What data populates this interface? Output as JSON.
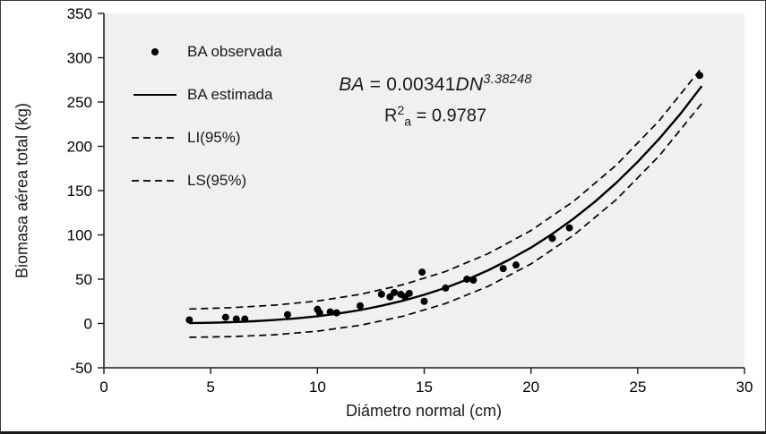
{
  "chart_data": {
    "type": "scatter",
    "title": "",
    "xlabel": "Diámetro normal (cm)",
    "ylabel": "Biomasa aérea total (kg)",
    "xlim": [
      0,
      30
    ],
    "ylim": [
      -50,
      350
    ],
    "xticks": [
      0,
      5,
      10,
      15,
      20,
      25,
      30
    ],
    "yticks": [
      -50,
      0,
      50,
      100,
      150,
      200,
      250,
      300,
      350
    ],
    "grid": false,
    "legend_position": "inside-top-left",
    "colors": {
      "plot_bg": "#f0f0f0",
      "axis": "#1a1a1a",
      "text": "#000000",
      "series": "#000000"
    },
    "annotation": {
      "equation_lhs": "BA",
      "equation_eq": " = 0.00341",
      "equation_var": "DN",
      "equation_exp": "3.38248",
      "r2_base": "R",
      "r2_sup": "2",
      "r2_sub": "a",
      "r2_rest": " = 0.9787"
    },
    "model": {
      "coefficient": 0.00341,
      "exponent": 3.38248,
      "r2_adjusted": 0.9787
    },
    "legend": [
      {
        "label": "BA observada",
        "marker": "dot"
      },
      {
        "label": "BA estimada",
        "marker": "solid-line"
      },
      {
        "label": "LI(95%)",
        "marker": "dashed-line"
      },
      {
        "label": "LS(95%)",
        "marker": "dashed-line"
      }
    ],
    "series": [
      {
        "name": "BA observada",
        "type": "scatter",
        "color": "#000000",
        "points": [
          [
            4,
            4
          ],
          [
            5.7,
            7
          ],
          [
            6.2,
            5
          ],
          [
            6.6,
            5
          ],
          [
            8.6,
            10
          ],
          [
            10,
            16
          ],
          [
            10.1,
            12
          ],
          [
            10.6,
            13
          ],
          [
            10.9,
            12
          ],
          [
            12,
            20
          ],
          [
            13,
            33
          ],
          [
            13.4,
            30
          ],
          [
            13.6,
            35
          ],
          [
            13.9,
            33
          ],
          [
            14.1,
            30
          ],
          [
            14.3,
            34
          ],
          [
            14.9,
            58
          ],
          [
            15,
            25
          ],
          [
            16,
            40
          ],
          [
            17,
            50
          ],
          [
            17.3,
            49
          ],
          [
            18.7,
            62
          ],
          [
            19.3,
            66
          ],
          [
            21,
            96
          ],
          [
            21.8,
            108
          ],
          [
            27.9,
            280
          ]
        ]
      },
      {
        "name": "BA estimada",
        "type": "line",
        "color": "#000000",
        "width": 2.4,
        "points": [
          [
            4,
            0.4
          ],
          [
            5,
            0.8
          ],
          [
            6,
            1.5
          ],
          [
            7,
            2.5
          ],
          [
            8,
            3.9
          ],
          [
            9,
            5.8
          ],
          [
            10,
            8.2
          ],
          [
            11,
            11.3
          ],
          [
            12,
            15.2
          ],
          [
            13,
            20.0
          ],
          [
            14,
            25.7
          ],
          [
            15,
            32.4
          ],
          [
            16,
            40.3
          ],
          [
            17,
            49.5
          ],
          [
            18,
            60.1
          ],
          [
            19,
            72.2
          ],
          [
            20,
            85.7
          ],
          [
            21,
            101.1
          ],
          [
            22,
            118.4
          ],
          [
            23,
            137.6
          ],
          [
            24,
            158.9
          ],
          [
            25,
            182.5
          ],
          [
            26,
            208.4
          ],
          [
            27,
            236.7
          ],
          [
            28,
            268.0
          ]
        ]
      },
      {
        "name": "LI(95%)",
        "type": "line",
        "color": "#000000",
        "width": 1.7,
        "dash": "8 5",
        "points": [
          [
            4,
            -15.6
          ],
          [
            6,
            -14.8
          ],
          [
            8,
            -12.7
          ],
          [
            10,
            -8.7
          ],
          [
            12,
            -2.0
          ],
          [
            14,
            8.2
          ],
          [
            16,
            22.5
          ],
          [
            18,
            42.0
          ],
          [
            20,
            67.3
          ],
          [
            22,
            99.7
          ],
          [
            24,
            139.9
          ],
          [
            26,
            189.1
          ],
          [
            28,
            248.4
          ]
        ]
      },
      {
        "name": "LS(95%)",
        "type": "line",
        "color": "#000000",
        "width": 1.7,
        "dash": "8 5",
        "points": [
          [
            4,
            16.4
          ],
          [
            6,
            17.9
          ],
          [
            8,
            20.7
          ],
          [
            10,
            25.4
          ],
          [
            12,
            32.8
          ],
          [
            14,
            43.7
          ],
          [
            16,
            58.7
          ],
          [
            18,
            78.9
          ],
          [
            20,
            104.9
          ],
          [
            22,
            138.0
          ],
          [
            24,
            178.9
          ],
          [
            26,
            228.8
          ],
          [
            28,
            288.8
          ]
        ]
      }
    ]
  }
}
